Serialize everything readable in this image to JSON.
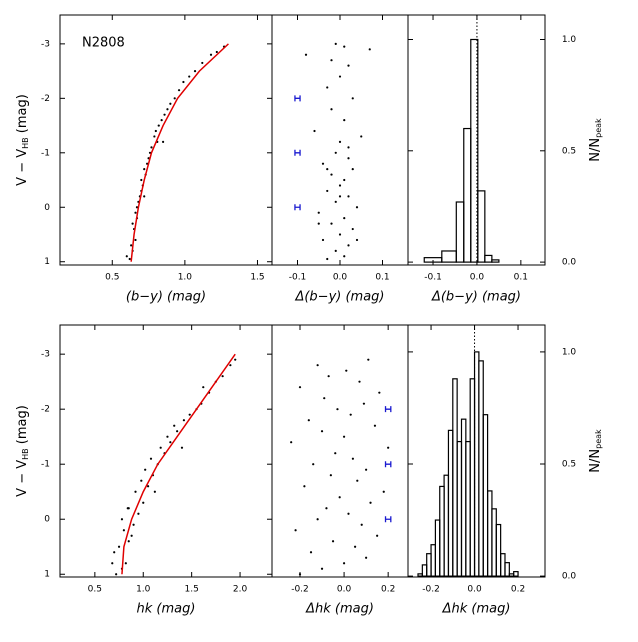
{
  "chart_data": [
    {
      "type": "scatter",
      "annotation": "N2808",
      "xlabel": "(b−y)  (mag)",
      "ylabel": [
        "V − V",
        "HB",
        " (mag)"
      ],
      "xlim": [
        0.14,
        1.6
      ],
      "ylim": [
        1.06,
        -3.53
      ],
      "xticks": [
        0.5,
        {
          "value": 1.0,
          "label": "1.0"
        },
        1.5
      ],
      "yticks": [
        -3,
        -2,
        -1,
        0,
        1
      ],
      "color": "#000000",
      "x": [
        0.62,
        0.64,
        0.66,
        0.63,
        0.65,
        0.67,
        0.64,
        0.66,
        0.68,
        0.7,
        0.67,
        0.69,
        0.71,
        0.73,
        0.7,
        0.72,
        0.75,
        0.74,
        0.77,
        0.79,
        0.76,
        0.8,
        0.82,
        0.84,
        0.81,
        0.86,
        0.88,
        0.9,
        0.93,
        0.96,
        0.99,
        1.03,
        1.07,
        1.12,
        1.18,
        1.22,
        1.27,
        0.6,
        0.72,
        0.85
      ],
      "y": [
        0.95,
        0.8,
        0.6,
        0.7,
        0.4,
        0.2,
        0.3,
        0.1,
        -0.1,
        -0.3,
        0.0,
        -0.2,
        -0.4,
        -0.6,
        -0.5,
        -0.7,
        -0.9,
        -0.8,
        -1.1,
        -1.3,
        -1.0,
        -1.4,
        -1.5,
        -1.6,
        -1.2,
        -1.7,
        -1.8,
        -1.9,
        -2.0,
        -2.15,
        -2.3,
        -2.4,
        -2.5,
        -2.65,
        -2.8,
        -2.85,
        -2.95,
        0.9,
        -0.2,
        -1.2
      ],
      "fiducial": {
        "color": "#e00000",
        "x": [
          0.63,
          0.65,
          0.68,
          0.72,
          0.77,
          0.85,
          0.95,
          1.1,
          1.3
        ],
        "y": [
          1,
          0.5,
          0,
          -0.5,
          -1,
          -1.5,
          -2,
          -2.5,
          -3
        ]
      }
    },
    {
      "type": "scatter",
      "xlabel": "Δ(b−y)  (mag)",
      "xlim": [
        -0.16,
        0.16
      ],
      "ylim": [
        1.06,
        -3.53
      ],
      "xticks": [
        -0.1,
        {
          "value": 0.0,
          "label": "0.0"
        },
        0.1
      ],
      "color": "#000000",
      "x": [
        -0.03,
        0.01,
        -0.01,
        0.02,
        -0.04,
        0.0,
        0.03,
        -0.02,
        0.01,
        -0.05,
        0.04,
        -0.01,
        0.02,
        -0.03,
        0.0,
        0.01,
        -0.02,
        0.03,
        -0.04,
        0.02,
        -0.01,
        0.0,
        0.05,
        -0.06,
        0.01,
        -0.02,
        0.03,
        -0.03,
        0.0,
        0.02,
        -0.08,
        0.07,
        -0.01,
        0.01,
        -0.02,
        0.04,
        -0.05,
        0.0,
        0.02,
        -0.03
      ],
      "y": [
        0.95,
        0.9,
        0.8,
        0.7,
        0.6,
        0.5,
        0.4,
        0.3,
        0.2,
        0.1,
        0.0,
        -0.1,
        -0.2,
        -0.3,
        -0.4,
        -0.5,
        -0.6,
        -0.7,
        -0.8,
        -0.9,
        -1.0,
        -1.2,
        -1.3,
        -1.4,
        -1.6,
        -1.8,
        -2.0,
        -2.2,
        -2.4,
        -2.6,
        -2.8,
        -2.9,
        -3.0,
        -2.95,
        -2.7,
        0.6,
        0.3,
        -0.2,
        -1.1,
        -0.7
      ],
      "error_bars": {
        "color": "#1a1ad0",
        "x": [
          -0.1,
          -0.1,
          -0.1
        ],
        "y": [
          -2,
          -1,
          0
        ],
        "xerr": [
          0.006,
          0.006,
          0.006
        ]
      }
    },
    {
      "type": "histogram",
      "xlabel": "Δ(b−y)  (mag)",
      "ylabel": [
        "N/N",
        "peak"
      ],
      "xlim": [
        -0.157,
        0.155
      ],
      "ylim": [
        -0.013,
        1.11
      ],
      "xticks": [
        -0.1,
        {
          "value": 0.0,
          "label": "0.0"
        },
        0.1
      ],
      "yticks": [
        {
          "value": 0.0,
          "label": "0.0"
        },
        0.5,
        {
          "value": 1.0,
          "label": "1.0"
        }
      ],
      "reference_line": 0,
      "color": "#000000",
      "bins": [
        -0.12,
        -0.08,
        -0.047,
        -0.03,
        -0.014,
        0.002,
        0.018,
        0.034,
        0.05
      ],
      "values": [
        0.02,
        0.05,
        0.27,
        0.6,
        1.0,
        0.32,
        0.03,
        0.01
      ]
    },
    {
      "type": "scatter",
      "xlabel": "hk  (mag)",
      "ylabel": [
        "V − V",
        "HB",
        " (mag)"
      ],
      "xlim": [
        0.14,
        2.33
      ],
      "ylim": [
        1.05,
        -3.53
      ],
      "xticks": [
        0.5,
        {
          "value": 1.0,
          "label": "1.0"
        },
        1.5,
        {
          "value": 2.0,
          "label": "2.0"
        }
      ],
      "yticks": [
        -3,
        -2,
        -1,
        0,
        1
      ],
      "color": "#000000",
      "x": [
        0.72,
        0.78,
        0.82,
        0.7,
        0.75,
        0.85,
        0.8,
        0.9,
        0.78,
        0.95,
        0.85,
        1.0,
        0.92,
        1.05,
        0.98,
        1.1,
        1.02,
        1.15,
        1.08,
        1.22,
        1.18,
        1.28,
        1.25,
        1.35,
        1.32,
        1.42,
        1.48,
        1.55,
        1.6,
        1.68,
        1.75,
        1.82,
        1.9,
        1.95,
        0.88,
        1.12,
        1.4,
        0.68,
        0.84,
        1.62
      ],
      "y": [
        1.0,
        0.9,
        0.8,
        0.6,
        0.5,
        0.4,
        0.2,
        0.1,
        0.0,
        -0.1,
        -0.2,
        -0.3,
        -0.5,
        -0.6,
        -0.7,
        -0.8,
        -0.9,
        -1.0,
        -1.1,
        -1.2,
        -1.3,
        -1.4,
        -1.5,
        -1.6,
        -1.7,
        -1.8,
        -1.9,
        -2.0,
        -2.1,
        -2.3,
        -2.5,
        -2.6,
        -2.8,
        -2.9,
        0.3,
        -0.5,
        -1.3,
        0.8,
        -0.2,
        -2.4
      ],
      "fiducial": {
        "color": "#e00000",
        "x": [
          0.78,
          0.8,
          0.88,
          1.0,
          1.15,
          1.35,
          1.55,
          1.75,
          1.95
        ],
        "y": [
          1,
          0.5,
          0,
          -0.5,
          -1,
          -1.5,
          -2,
          -2.5,
          -3
        ]
      }
    },
    {
      "type": "scatter",
      "xlabel": "Δhk  (mag)",
      "xlim": [
        -0.327,
        0.29
      ],
      "ylim": [
        1.05,
        -3.53
      ],
      "xticks": [
        -0.2,
        {
          "value": 0.0,
          "label": "0.0"
        },
        0.2
      ],
      "color": "#000000",
      "x": [
        -0.2,
        -0.1,
        0.0,
        0.1,
        -0.15,
        0.05,
        -0.05,
        0.15,
        -0.22,
        0.08,
        -0.12,
        0.02,
        -0.08,
        0.12,
        -0.02,
        0.18,
        -0.18,
        0.06,
        -0.06,
        0.1,
        -0.14,
        0.04,
        -0.04,
        0.2,
        -0.24,
        0.0,
        -0.1,
        0.14,
        -0.16,
        0.03,
        -0.03,
        0.09,
        -0.09,
        0.16,
        -0.2,
        0.07,
        -0.07,
        0.01,
        -0.12,
        0.11
      ],
      "y": [
        1.0,
        0.9,
        0.8,
        0.7,
        0.6,
        0.5,
        0.4,
        0.3,
        0.2,
        0.1,
        0.0,
        -0.1,
        -0.2,
        -0.3,
        -0.4,
        -0.5,
        -0.6,
        -0.7,
        -0.8,
        -0.9,
        -1.0,
        -1.1,
        -1.2,
        -1.3,
        -1.4,
        -1.5,
        -1.6,
        -1.7,
        -1.8,
        -1.9,
        -2.0,
        -2.1,
        -2.2,
        -2.3,
        -2.4,
        -2.5,
        -2.6,
        -2.7,
        -2.8,
        -2.9
      ],
      "error_bars": {
        "color": "#1a1ad0",
        "x": [
          0.2,
          0.2,
          0.2
        ],
        "y": [
          -2,
          -1,
          0
        ],
        "xerr": [
          0.012,
          0.012,
          0.012
        ]
      }
    },
    {
      "type": "histogram",
      "xlabel": "Δhk  (mag)",
      "ylabel": [
        "N/N",
        "peak"
      ],
      "xlim": [
        -0.306,
        0.324
      ],
      "ylim": [
        -0.004,
        1.12
      ],
      "xticks": [
        -0.2,
        {
          "value": 0.0,
          "label": "0.0"
        },
        0.2
      ],
      "yticks": [
        {
          "value": 0.0,
          "label": "0.0"
        },
        0.5,
        {
          "value": 1.0,
          "label": "1.0"
        }
      ],
      "reference_line": 0,
      "color": "#000000",
      "bins": [
        -0.26,
        -0.24,
        -0.22,
        -0.2,
        -0.18,
        -0.16,
        -0.14,
        -0.12,
        -0.1,
        -0.08,
        -0.06,
        -0.04,
        -0.02,
        0.0,
        0.02,
        0.04,
        0.06,
        0.08,
        0.1,
        0.12,
        0.14,
        0.16,
        0.18,
        0.2
      ],
      "values": [
        0.01,
        0.05,
        0.1,
        0.14,
        0.25,
        0.4,
        0.45,
        0.65,
        0.88,
        0.6,
        0.7,
        0.6,
        0.88,
        1.0,
        0.96,
        0.72,
        0.38,
        0.3,
        0.23,
        0.1,
        0.06,
        0.01,
        0.02
      ]
    }
  ]
}
